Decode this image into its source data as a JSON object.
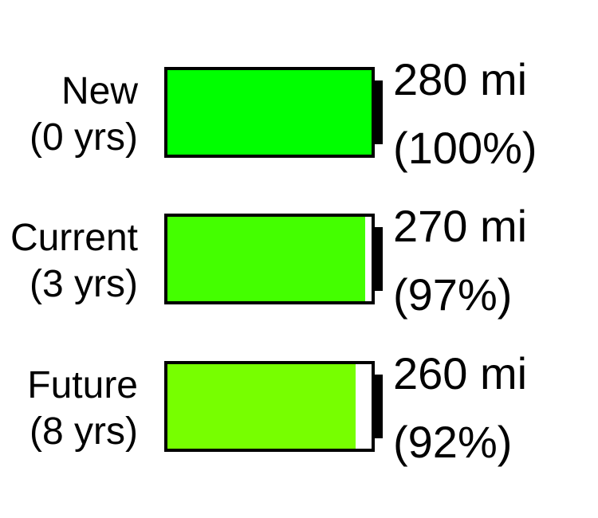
{
  "rows": [
    {
      "label_line1": "New",
      "label_line2": "(0 yrs)",
      "range": "280 mi",
      "percent": "(100%)",
      "charge_fraction": 1.0,
      "fill_color": "#00ff00"
    },
    {
      "label_line1": "Current",
      "label_line2": "(3 yrs)",
      "range": "270 mi",
      "percent": "(97%)",
      "charge_fraction": 0.97,
      "fill_color": "#44ff00"
    },
    {
      "label_line1": "Future",
      "label_line2": "(8 yrs)",
      "range": "260 mi",
      "percent": "(92%)",
      "charge_fraction": 0.92,
      "fill_color": "#77ff00"
    }
  ]
}
